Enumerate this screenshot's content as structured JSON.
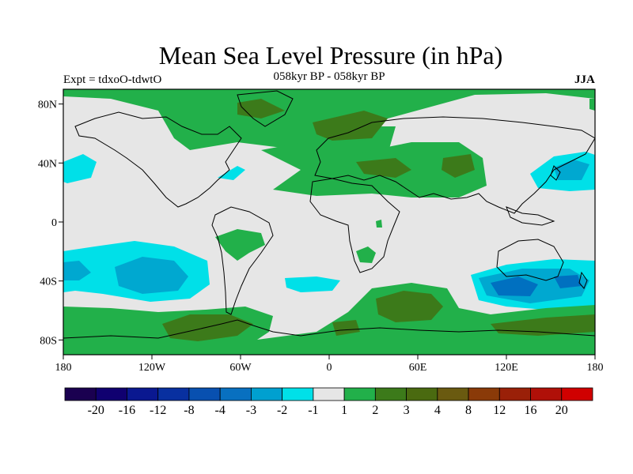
{
  "title": "Mean Sea Level Pressure (in hPa)",
  "subtitle": "058kyr BP - 058kyr BP",
  "experiment": "Expt = tdxoO-tdwtO",
  "season": "JJA",
  "colors": {
    "background": "#e6e6e6",
    "coast": "#000000",
    "pos1": "#22b04a",
    "pos2": "#3c7a1a",
    "pos3": "#5a5a10",
    "neg1": "#00e0e8",
    "neg2": "#00a8d0",
    "neg3": "#0070c0"
  },
  "chart_data": {
    "type": "heatmap",
    "projection": "cylindrical-equidistant",
    "x_ticks": [
      "180",
      "120W",
      "60W",
      "0",
      "60E",
      "120E",
      "180"
    ],
    "y_ticks": [
      "80N",
      "40N",
      "0",
      "40S",
      "80S"
    ],
    "xlim": [
      -180,
      180
    ],
    "ylim": [
      -90,
      90
    ],
    "colorbar": {
      "labels": [
        "-20",
        "-16",
        "-12",
        "-8",
        "-4",
        "-3",
        "-2",
        "-1",
        "1",
        "2",
        "3",
        "4",
        "8",
        "12",
        "16",
        "20"
      ],
      "colors": [
        "#1a0050",
        "#100070",
        "#0a1890",
        "#0830a0",
        "#0850b0",
        "#0870c0",
        "#00a0d0",
        "#00e0e8",
        "#e6e6e6",
        "#22b04a",
        "#3c7a1a",
        "#4a6a10",
        "#6a5a10",
        "#8a3a08",
        "#9a2008",
        "#b01008",
        "#d00000"
      ]
    },
    "regions": [
      {
        "name": "arctic-positive",
        "level": 1,
        "lon": -30,
        "lat": 75
      },
      {
        "name": "siberia-positive",
        "level": 2,
        "lon": 20,
        "lat": 70
      },
      {
        "name": "central-asia-positive",
        "level": 1,
        "lon": 70,
        "lat": 40
      },
      {
        "name": "north-pacific-negative",
        "level": -1,
        "lon": 160,
        "lat": 40
      },
      {
        "name": "south-pacific-negative",
        "level": -2,
        "lon": -130,
        "lat": -35
      },
      {
        "name": "australia-south-negative",
        "level": -3,
        "lon": 125,
        "lat": -40
      },
      {
        "name": "south-indian-positive",
        "level": 3,
        "lon": 45,
        "lat": -55
      },
      {
        "name": "southern-ocean-positive",
        "level": 2,
        "lon": -80,
        "lat": -70
      },
      {
        "name": "south-atlantic-negative",
        "level": -1,
        "lon": -20,
        "lat": -40
      },
      {
        "name": "south-america-positive",
        "level": 1,
        "lon": -60,
        "lat": -15
      }
    ]
  }
}
